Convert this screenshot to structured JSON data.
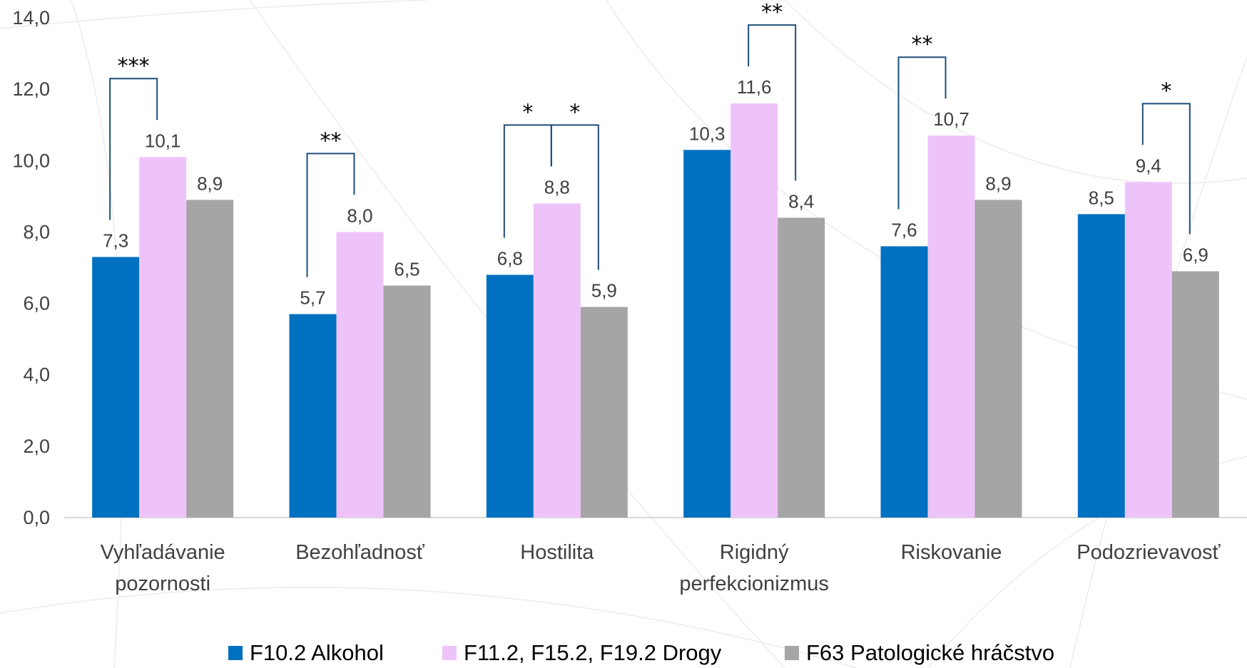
{
  "chart_data": {
    "type": "bar",
    "categories": [
      [
        "Vyhľadávanie",
        "pozornosti"
      ],
      [
        "Bezohľadnosť"
      ],
      [
        "Hostilita"
      ],
      [
        "Rigidný",
        "perfekcionizmus"
      ],
      [
        "Riskovanie"
      ],
      [
        "Podozrievavosť"
      ]
    ],
    "series": [
      {
        "name": "F10.2 Alkohol",
        "color": "#0070C0",
        "values": [
          7.3,
          5.7,
          6.8,
          10.3,
          7.6,
          8.5
        ],
        "labels": [
          "7,3",
          "5,7",
          "6,8",
          "10,3",
          "7,6",
          "8,5"
        ]
      },
      {
        "name": "F11.2, F15.2, F19.2 Drogy",
        "color": "#EEC3FA",
        "values": [
          10.1,
          8.0,
          8.8,
          11.6,
          10.7,
          9.4
        ],
        "labels": [
          "10,1",
          "8,0",
          "8,8",
          "11,6",
          "10,7",
          "9,4"
        ]
      },
      {
        "name": "F63 Patologické hráčstvo",
        "color": "#A5A5A5",
        "values": [
          8.9,
          6.5,
          5.9,
          8.4,
          8.9,
          6.9
        ],
        "labels": [
          "8,9",
          "6,5",
          "5,9",
          "8,4",
          "8,9",
          "6,9"
        ]
      }
    ],
    "ylim": [
      0,
      14
    ],
    "yticks": [
      {
        "v": 0,
        "label": "0,0"
      },
      {
        "v": 2,
        "label": "2,0"
      },
      {
        "v": 4,
        "label": "4,0"
      },
      {
        "v": 6,
        "label": "6,0"
      },
      {
        "v": 8,
        "label": "8,0"
      },
      {
        "v": 10,
        "label": "10,0"
      },
      {
        "v": 12,
        "label": "12,0"
      },
      {
        "v": 14,
        "label": "14,0"
      }
    ],
    "significance": [
      {
        "category": 0,
        "from": 0,
        "to": 1,
        "label": "***"
      },
      {
        "category": 1,
        "from": 0,
        "to": 1,
        "label": "**"
      },
      {
        "category": 2,
        "from": 0,
        "to": 1,
        "label": "*"
      },
      {
        "category": 2,
        "from": 1,
        "to": 2,
        "label": "*"
      },
      {
        "category": 3,
        "from": 1,
        "to": 2,
        "label": "**"
      },
      {
        "category": 4,
        "from": 0,
        "to": 1,
        "label": "**"
      },
      {
        "category": 5,
        "from": 1,
        "to": 2,
        "label": "*"
      }
    ],
    "bracket_color": "#1F4E79",
    "grid": false,
    "legend": "bottom"
  }
}
